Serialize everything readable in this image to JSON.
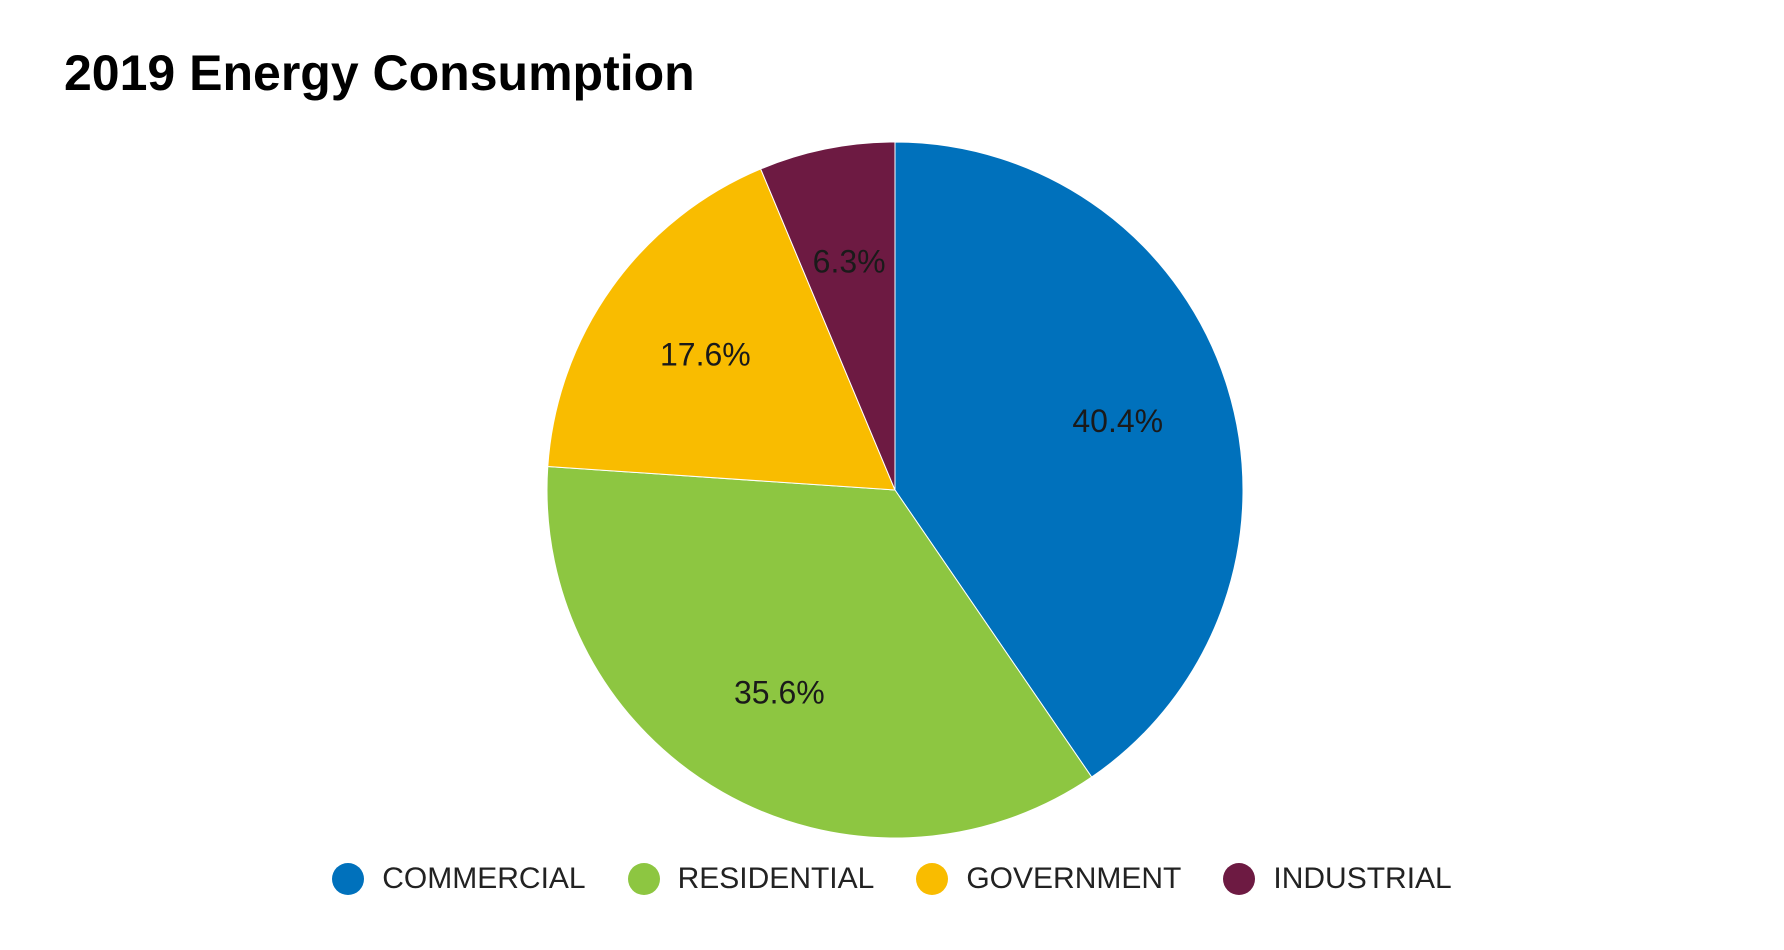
{
  "chart_data": {
    "type": "pie",
    "title": "2019 Energy Consumption",
    "categories": [
      "COMMERCIAL",
      "RESIDENTIAL",
      "GOVERNMENT",
      "INDUSTRIAL"
    ],
    "values": [
      40.4,
      35.6,
      17.6,
      6.3
    ],
    "data_labels": [
      "40.4%",
      "35.6%",
      "17.6%",
      "6.3%"
    ],
    "colors": [
      "#0071bc",
      "#8dc641",
      "#f9bc00",
      "#6d1a42"
    ],
    "start_angle": "12 o'clock",
    "direction": "clockwise",
    "legend": {
      "position": "bottom",
      "marker": "circle"
    }
  }
}
